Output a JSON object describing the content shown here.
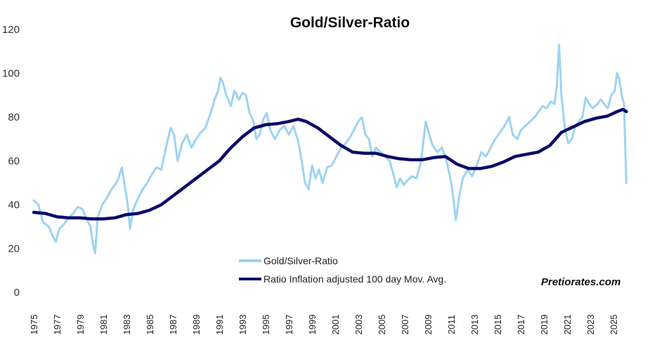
{
  "chart_data": {
    "type": "line",
    "title": "Gold/Silver-Ratio",
    "ylim": [
      0,
      120
    ],
    "yticks": [
      0,
      20,
      40,
      60,
      80,
      100,
      120
    ],
    "xlim": [
      1975,
      2026.5
    ],
    "xticks": [
      "1975",
      "1977",
      "1979",
      "1981",
      "1983",
      "1985",
      "1987",
      "1989",
      "1991",
      "1993",
      "1995",
      "1997",
      "1999",
      "2001",
      "2003",
      "2005",
      "2007",
      "2009",
      "2011",
      "2013",
      "2015",
      "2017",
      "2019",
      "2021",
      "2023",
      "2025"
    ],
    "watermark": "Pretiorates.com",
    "series": [
      {
        "name": "Gold/Silver-Ratio",
        "color": "#9DD3F2",
        "points": [
          [
            1975.0,
            42
          ],
          [
            1975.4,
            40
          ],
          [
            1975.8,
            32
          ],
          [
            1976.3,
            30
          ],
          [
            1976.6,
            26
          ],
          [
            1976.9,
            23
          ],
          [
            1977.2,
            29
          ],
          [
            1977.6,
            31
          ],
          [
            1978.0,
            34
          ],
          [
            1978.4,
            36
          ],
          [
            1978.8,
            39
          ],
          [
            1979.2,
            38
          ],
          [
            1979.6,
            33
          ],
          [
            1979.9,
            30
          ],
          [
            1980.1,
            22
          ],
          [
            1980.3,
            18
          ],
          [
            1980.5,
            34
          ],
          [
            1980.9,
            40
          ],
          [
            1981.3,
            43
          ],
          [
            1981.7,
            47
          ],
          [
            1982.0,
            49
          ],
          [
            1982.3,
            52
          ],
          [
            1982.6,
            57
          ],
          [
            1982.9,
            47
          ],
          [
            1983.1,
            40
          ],
          [
            1983.3,
            29
          ],
          [
            1983.6,
            38
          ],
          [
            1984.0,
            43
          ],
          [
            1984.4,
            47
          ],
          [
            1984.8,
            50
          ],
          [
            1985.2,
            54
          ],
          [
            1985.6,
            57
          ],
          [
            1986.0,
            56
          ],
          [
            1986.4,
            66
          ],
          [
            1986.8,
            75
          ],
          [
            1987.1,
            72
          ],
          [
            1987.4,
            60
          ],
          [
            1987.8,
            68
          ],
          [
            1988.2,
            72
          ],
          [
            1988.6,
            66
          ],
          [
            1989.0,
            70
          ],
          [
            1989.4,
            73
          ],
          [
            1989.8,
            75
          ],
          [
            1990.2,
            81
          ],
          [
            1990.6,
            88
          ],
          [
            1990.9,
            92
          ],
          [
            1991.1,
            98
          ],
          [
            1991.3,
            96
          ],
          [
            1991.6,
            90
          ],
          [
            1992.0,
            85
          ],
          [
            1992.3,
            92
          ],
          [
            1992.7,
            88
          ],
          [
            1993.0,
            91
          ],
          [
            1993.3,
            90
          ],
          [
            1993.6,
            82
          ],
          [
            1993.9,
            79
          ],
          [
            1994.2,
            70
          ],
          [
            1994.5,
            72
          ],
          [
            1994.8,
            79
          ],
          [
            1995.1,
            82
          ],
          [
            1995.4,
            74
          ],
          [
            1995.8,
            70
          ],
          [
            1996.2,
            74
          ],
          [
            1996.6,
            76
          ],
          [
            1997.0,
            72
          ],
          [
            1997.4,
            76
          ],
          [
            1997.8,
            69
          ],
          [
            1998.1,
            60
          ],
          [
            1998.4,
            50
          ],
          [
            1998.7,
            47
          ],
          [
            1999.0,
            58
          ],
          [
            1999.3,
            52
          ],
          [
            1999.6,
            56
          ],
          [
            1999.9,
            50
          ],
          [
            2000.3,
            57
          ],
          [
            2000.7,
            58
          ],
          [
            2001.1,
            62
          ],
          [
            2001.5,
            66
          ],
          [
            2001.9,
            68
          ],
          [
            2002.3,
            71
          ],
          [
            2002.7,
            75
          ],
          [
            2003.0,
            78
          ],
          [
            2003.3,
            80
          ],
          [
            2003.6,
            72
          ],
          [
            2003.9,
            70
          ],
          [
            2004.2,
            62
          ],
          [
            2004.5,
            66
          ],
          [
            2004.9,
            64
          ],
          [
            2005.3,
            62
          ],
          [
            2005.7,
            60
          ],
          [
            2006.0,
            54
          ],
          [
            2006.3,
            48
          ],
          [
            2006.6,
            52
          ],
          [
            2006.9,
            49
          ],
          [
            2007.2,
            51
          ],
          [
            2007.6,
            53
          ],
          [
            2008.0,
            52
          ],
          [
            2008.4,
            60
          ],
          [
            2008.8,
            78
          ],
          [
            2009.1,
            72
          ],
          [
            2009.4,
            67
          ],
          [
            2009.8,
            64
          ],
          [
            2010.2,
            66
          ],
          [
            2010.6,
            60
          ],
          [
            2011.0,
            50
          ],
          [
            2011.2,
            42
          ],
          [
            2011.4,
            33
          ],
          [
            2011.7,
            44
          ],
          [
            2012.0,
            52
          ],
          [
            2012.4,
            56
          ],
          [
            2012.8,
            53
          ],
          [
            2013.2,
            58
          ],
          [
            2013.6,
            64
          ],
          [
            2014.0,
            62
          ],
          [
            2014.4,
            66
          ],
          [
            2014.8,
            70
          ],
          [
            2015.2,
            73
          ],
          [
            2015.6,
            76
          ],
          [
            2016.0,
            80
          ],
          [
            2016.3,
            72
          ],
          [
            2016.7,
            70
          ],
          [
            2017.0,
            74
          ],
          [
            2017.4,
            76
          ],
          [
            2017.8,
            78
          ],
          [
            2018.2,
            80
          ],
          [
            2018.6,
            83
          ],
          [
            2018.9,
            85
          ],
          [
            2019.2,
            84
          ],
          [
            2019.6,
            87
          ],
          [
            2019.9,
            86
          ],
          [
            2020.1,
            94
          ],
          [
            2020.3,
            113
          ],
          [
            2020.5,
            90
          ],
          [
            2020.8,
            75
          ],
          [
            2021.1,
            68
          ],
          [
            2021.4,
            70
          ],
          [
            2021.7,
            76
          ],
          [
            2022.0,
            78
          ],
          [
            2022.3,
            80
          ],
          [
            2022.6,
            89
          ],
          [
            2022.9,
            86
          ],
          [
            2023.2,
            84
          ],
          [
            2023.6,
            86
          ],
          [
            2023.9,
            88
          ],
          [
            2024.2,
            86
          ],
          [
            2024.5,
            84
          ],
          [
            2024.8,
            90
          ],
          [
            2025.1,
            92
          ],
          [
            2025.3,
            100
          ],
          [
            2025.5,
            97
          ],
          [
            2025.7,
            90
          ],
          [
            2025.9,
            86
          ],
          [
            2026.0,
            68
          ],
          [
            2026.1,
            50
          ]
        ]
      },
      {
        "name": "Ratio Inflation adjusted 100 day Mov. Avg.",
        "color": "#0C0C6B",
        "points": [
          [
            1975.0,
            36.5
          ],
          [
            1976.0,
            36
          ],
          [
            1977.0,
            34.5
          ],
          [
            1978.0,
            34
          ],
          [
            1979.0,
            34
          ],
          [
            1980.0,
            33.5
          ],
          [
            1981.0,
            33.5
          ],
          [
            1982.0,
            34
          ],
          [
            1983.0,
            35.5
          ],
          [
            1984.0,
            36
          ],
          [
            1985.0,
            37.5
          ],
          [
            1986.0,
            40
          ],
          [
            1987.0,
            44
          ],
          [
            1988.0,
            48
          ],
          [
            1989.0,
            52
          ],
          [
            1990.0,
            56
          ],
          [
            1991.0,
            60
          ],
          [
            1992.0,
            66
          ],
          [
            1993.0,
            71
          ],
          [
            1994.0,
            75
          ],
          [
            1995.0,
            76.5
          ],
          [
            1996.0,
            77
          ],
          [
            1997.0,
            78
          ],
          [
            1997.8,
            79
          ],
          [
            1998.5,
            78
          ],
          [
            1999.5,
            75
          ],
          [
            2000.5,
            71
          ],
          [
            2001.5,
            67
          ],
          [
            2002.5,
            64
          ],
          [
            2003.5,
            63.5
          ],
          [
            2004.5,
            63.5
          ],
          [
            2005.5,
            62
          ],
          [
            2006.5,
            61
          ],
          [
            2007.5,
            60.5
          ],
          [
            2008.5,
            60.5
          ],
          [
            2009.5,
            61.5
          ],
          [
            2010.5,
            62
          ],
          [
            2011.5,
            58.5
          ],
          [
            2012.5,
            56.5
          ],
          [
            2013.5,
            56.5
          ],
          [
            2014.5,
            57.5
          ],
          [
            2015.5,
            59.5
          ],
          [
            2016.5,
            62
          ],
          [
            2017.5,
            63
          ],
          [
            2018.5,
            64
          ],
          [
            2019.5,
            67
          ],
          [
            2020.5,
            73
          ],
          [
            2021.5,
            75.5
          ],
          [
            2022.5,
            78
          ],
          [
            2023.5,
            79.5
          ],
          [
            2024.5,
            80.5
          ],
          [
            2025.3,
            82.5
          ],
          [
            2025.8,
            83.5
          ],
          [
            2026.1,
            82.5
          ]
        ]
      }
    ]
  }
}
